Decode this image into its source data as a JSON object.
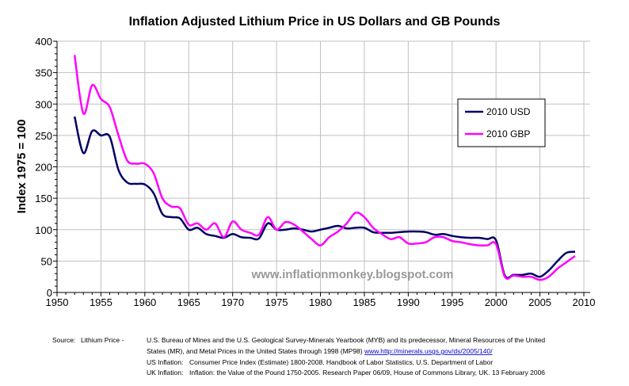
{
  "chart_data": {
    "type": "line",
    "title": "Inflation Adjusted Lithium Price in US Dollars and GB Pounds",
    "xlabel": "",
    "ylabel": "Index 1975 = 100",
    "xlim": [
      1950,
      2010
    ],
    "ylim": [
      0,
      400
    ],
    "xticks": [
      "1950",
      "1955",
      "1960",
      "1965",
      "1970",
      "1975",
      "1980",
      "1985",
      "1990",
      "1995",
      "2000",
      "2005",
      "2010"
    ],
    "yticks": [
      "0",
      "50",
      "100",
      "150",
      "200",
      "250",
      "300",
      "350",
      "400"
    ],
    "grid": true,
    "legend_position": "top-right",
    "x": [
      1952,
      1953,
      1954,
      1955,
      1956,
      1957,
      1958,
      1959,
      1960,
      1961,
      1962,
      1963,
      1964,
      1965,
      1966,
      1967,
      1968,
      1969,
      1970,
      1971,
      1972,
      1973,
      1974,
      1975,
      1976,
      1977,
      1978,
      1979,
      1980,
      1981,
      1982,
      1983,
      1984,
      1985,
      1986,
      1987,
      1988,
      1989,
      1990,
      1991,
      1992,
      1993,
      1994,
      1995,
      1996,
      1997,
      1998,
      1999,
      2000,
      2001,
      2002,
      2003,
      2004,
      2005,
      2006,
      2007,
      2008,
      2009
    ],
    "series": [
      {
        "name": "2010 USD",
        "color": "#000066",
        "values": [
          280,
          222,
          257,
          250,
          248,
          195,
          175,
          173,
          172,
          158,
          125,
          120,
          118,
          100,
          103,
          93,
          90,
          87,
          93,
          88,
          87,
          86,
          110,
          100,
          100,
          102,
          100,
          97,
          100,
          103,
          106,
          102,
          103,
          103,
          96,
          95,
          95,
          96,
          97,
          97,
          96,
          92,
          93,
          90,
          88,
          87,
          87,
          85,
          83,
          27,
          28,
          28,
          30,
          25,
          35,
          50,
          63,
          65
        ]
      },
      {
        "name": "2010 GBP",
        "color": "#ff00ff",
        "values": [
          378,
          285,
          330,
          308,
          295,
          250,
          210,
          205,
          205,
          190,
          150,
          137,
          134,
          108,
          110,
          100,
          110,
          88,
          113,
          100,
          95,
          92,
          120,
          100,
          112,
          108,
          97,
          85,
          75,
          88,
          97,
          110,
          127,
          120,
          103,
          93,
          85,
          88,
          78,
          78,
          80,
          88,
          88,
          82,
          80,
          77,
          75,
          75,
          77,
          25,
          27,
          25,
          25,
          20,
          25,
          38,
          48,
          58
        ]
      }
    ],
    "watermark": "www.inflationmonkey.blogspot.com"
  },
  "source": {
    "label": "Source:",
    "lithium_label": "Lithium Price  -",
    "lithium_line1": "U.S. Bureau of Mines and the U.S. Geological Survey-Minerals Yearbook (MYB) and its predecessor, Mineral Resources of the United",
    "lithium_line2": "States (MR), and Metal Prices in the United States through 1998 (MP98)",
    "lithium_link": "www.http://minerals.usgs.gov/ds/2005/140/",
    "us_label": "US Inflation:",
    "us_text": "Consumer Price Index (Estimate) 1800-2008. Handbook of Labor Statistics, U.S. Department of Labor",
    "uk_label": "UK Inflation:",
    "uk_text": "Inflation: the Value of the Pound 1750-2005. Research Paper 06/09, House of Commons Library, UK. 13 February 2006"
  }
}
